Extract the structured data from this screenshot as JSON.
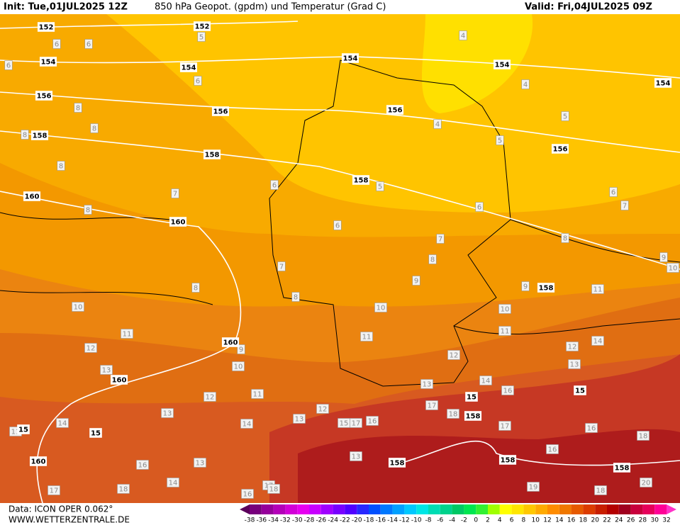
{
  "header": {
    "init": "Init: Tue,01JUL2025 12Z",
    "title": "850 hPa Geopot. (gpdm) und Temperatur (Grad C)",
    "valid": "Valid: Fri,04JUL2025 09Z"
  },
  "footer": {
    "data": "Data: ICON OPER 0.062°",
    "site": "WWW.WETTERZENTRALE.DE"
  },
  "colorbar": {
    "labels": [
      -38,
      -36,
      -34,
      -32,
      -30,
      -28,
      -26,
      -24,
      -22,
      -20,
      -18,
      -16,
      -14,
      -12,
      -10,
      -8,
      -6,
      -4,
      -2,
      0,
      2,
      4,
      6,
      8,
      10,
      12,
      14,
      16,
      18,
      20,
      22,
      24,
      26,
      28,
      30,
      32
    ],
    "colors": [
      "#5a005a",
      "#78007d",
      "#96009b",
      "#b400b9",
      "#d200d7",
      "#e600f0",
      "#c800ff",
      "#a000ff",
      "#7800ff",
      "#5000ff",
      "#2828ff",
      "#0050ff",
      "#0078ff",
      "#00a0ff",
      "#00c8ff",
      "#00e6e6",
      "#00dcb4",
      "#00d28c",
      "#00c864",
      "#00e650",
      "#32f032",
      "#a0ff00",
      "#ffff00",
      "#ffe600",
      "#ffc800",
      "#ffaa00",
      "#ff8c00",
      "#f07800",
      "#e65a00",
      "#dc3c00",
      "#c81e00",
      "#b40000",
      "#a0001e",
      "#c8003c",
      "#e6005a",
      "#ff0096",
      "#ff32c8"
    ]
  },
  "geopotential_labels": [
    152,
    152,
    154,
    154,
    154,
    154,
    154,
    156,
    156,
    156,
    156,
    158,
    158,
    158,
    160,
    160,
    158,
    160,
    160,
    15,
    15,
    158,
    158,
    158,
    158,
    160,
    15,
    15
  ],
  "temperature_labels": [
    5,
    4,
    6,
    6,
    6,
    6,
    4,
    8,
    5,
    4,
    8,
    8,
    5,
    8,
    5,
    6,
    6,
    7,
    7,
    8,
    6,
    6,
    7,
    8,
    7,
    8,
    9,
    10,
    9,
    8,
    9,
    8,
    11,
    10,
    10,
    10,
    11,
    11,
    11,
    14,
    12,
    9,
    12,
    12,
    10,
    13,
    13,
    14,
    13,
    16,
    12,
    11,
    17,
    13,
    18,
    12,
    13,
    14,
    14,
    15,
    17,
    16,
    17,
    16,
    18,
    16,
    13,
    13,
    16,
    18,
    17,
    14,
    16,
    17,
    18,
    19,
    18,
    20,
    11
  ]
}
